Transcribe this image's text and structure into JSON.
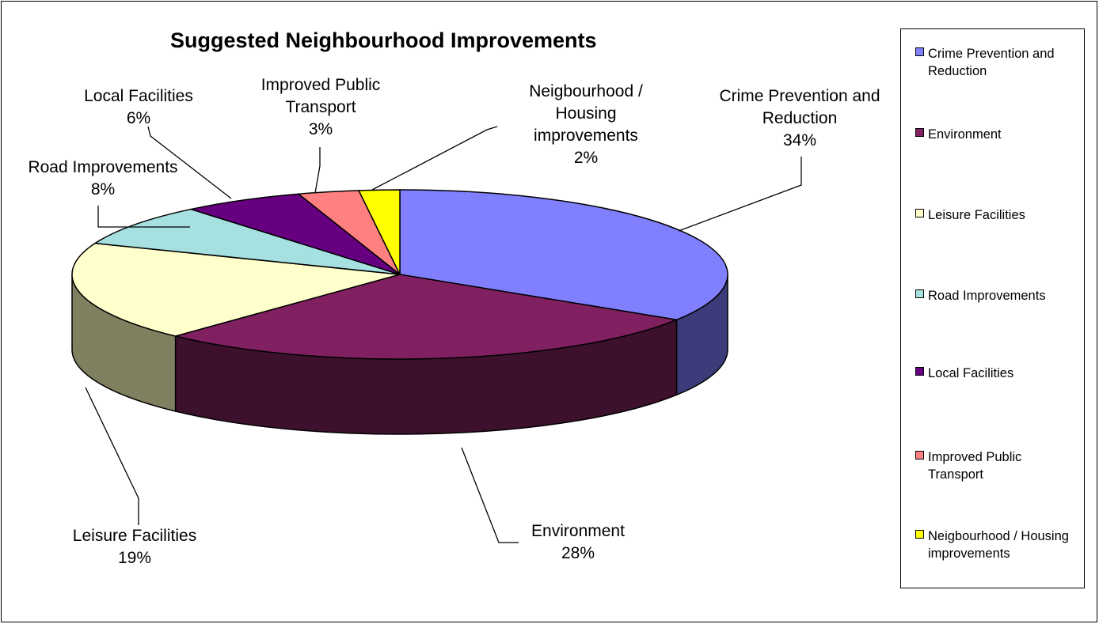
{
  "chart_data": {
    "type": "pie",
    "title": "Suggested Neighbourhood Improvements",
    "slices": [
      {
        "label": "Crime Prevention and Reduction",
        "value": 34,
        "value_label": "34%",
        "color": "#8080FF",
        "side_color": "#3C3C7A",
        "legend_label": "Crime Prevention and Reduction"
      },
      {
        "label": "Environment",
        "value": 28,
        "value_label": "28%",
        "color": "#802060",
        "side_color": "#3D112D",
        "legend_label": "Environment"
      },
      {
        "label": "Leisure Facilities",
        "value": 19,
        "value_label": "19%",
        "color": "#FFFFCC",
        "side_color": "#808060",
        "legend_label": "Leisure Facilities"
      },
      {
        "label": "Road Improvements",
        "value": 8,
        "value_label": "8%",
        "color": "#A6E0E0",
        "side_color": "#507070",
        "legend_label": "Road Improvements"
      },
      {
        "label": "Local Facilities",
        "value": 6,
        "value_label": "6%",
        "color": "#660080",
        "side_color": "#33004A",
        "legend_label": "Local Facilities"
      },
      {
        "label": "Improved Public Transport",
        "value": 3,
        "value_label": "3%",
        "color": "#FF8080",
        "side_color": "#804040",
        "legend_label": "Improved Public Transport"
      },
      {
        "label": "Neigbourhood / Housing improvements",
        "value": 2,
        "value_label": "2%",
        "color": "#FFFF00",
        "side_color": "#808000",
        "legend_label": "Neigbourhood / Housing improvements"
      }
    ],
    "legend_position": "right"
  }
}
